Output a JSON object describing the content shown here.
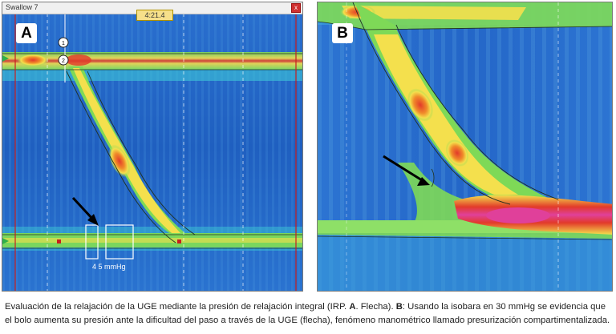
{
  "panel_a": {
    "letter": "A",
    "window_title": "Swallow 7",
    "time_readout": "4:21.4",
    "close_glyph": "x",
    "isobar_label": "4 5 mmHg",
    "marker_numbers": [
      "1",
      "2"
    ]
  },
  "panel_b": {
    "letter": "B"
  },
  "caption": {
    "part1": "Evaluación de la relajación de la UGE mediante la presión de relajación integral (IRP. ",
    "a_ref": "A",
    "part2": ". Flecha). ",
    "b_ref": "B",
    "part3": ": Usando la isobara en 30 mmHg se evidencia que el bolo aumenta su presión ante la dificultad del paso a través de la UGE (flecha), fenómeno manométrico llamado presurización compartimentalizada."
  },
  "colors": {
    "background_blue": "#1f63c4",
    "light_blue": "#5aa8e0",
    "cyan": "#3fd0d8",
    "green": "#7ed957",
    "yellow": "#f4e04d",
    "orange": "#f08a2a",
    "red": "#e23a2a",
    "magenta": "#e0409a",
    "contour_line": "#203020"
  },
  "icons": [
    "arrow-icon",
    "close-icon"
  ]
}
